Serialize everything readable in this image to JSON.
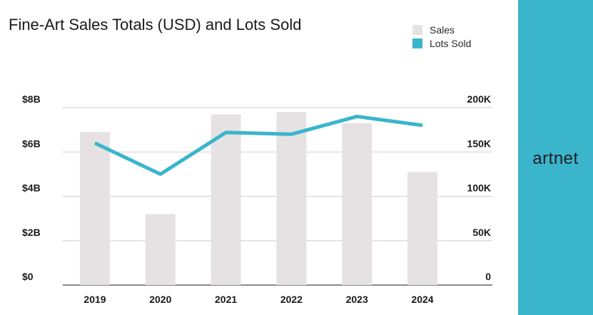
{
  "title": "Fine-Art Sales Totals (USD) and Lots Sold",
  "brand": {
    "name": "artnet",
    "panel_color": "#3ab5cc"
  },
  "legend": [
    {
      "label": "Sales",
      "color": "#e6e2e3"
    },
    {
      "label": "Lots Sold",
      "color": "#3ab5cc"
    }
  ],
  "chart_data": {
    "type": "bar",
    "categories": [
      "2019",
      "2020",
      "2021",
      "2022",
      "2023",
      "2024"
    ],
    "series": [
      {
        "name": "Sales",
        "type": "bar",
        "axis": "left",
        "color": "#e6e2e3",
        "values": [
          6.9,
          3.2,
          7.7,
          7.8,
          7.3,
          5.1
        ]
      },
      {
        "name": "Lots Sold",
        "type": "line",
        "axis": "right",
        "color": "#3ab5cc",
        "values": [
          160000,
          125000,
          172000,
          170000,
          190000,
          180000
        ]
      }
    ],
    "left_axis": {
      "ylim": [
        0,
        8
      ],
      "ticks": [
        0,
        2,
        4,
        6,
        8
      ],
      "tick_labels": [
        "$0",
        "$2B",
        "$4B",
        "$6B",
        "$8B"
      ]
    },
    "right_axis": {
      "ylim": [
        0,
        200000
      ],
      "ticks": [
        0,
        50000,
        100000,
        150000,
        200000
      ],
      "tick_labels": [
        "0",
        "50K",
        "100K",
        "150K",
        "200K"
      ]
    },
    "grid": true,
    "legend_position": "top-right"
  }
}
